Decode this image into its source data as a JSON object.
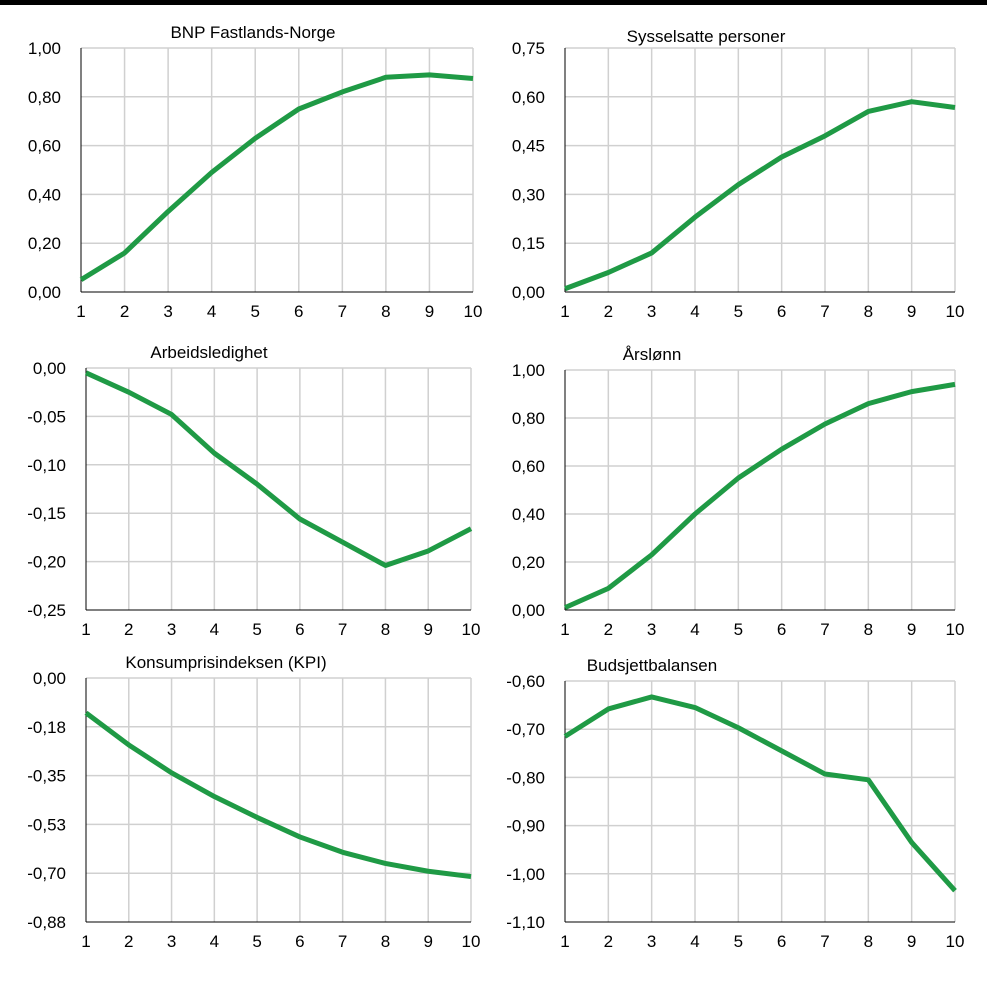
{
  "colors": {
    "series": "#1f9a45",
    "grid": "#d0d0d0",
    "axis": "#000000"
  },
  "chart_data": [
    {
      "type": "line",
      "title": "BNP Fastlands-Norge",
      "x": [
        1,
        2,
        3,
        4,
        5,
        6,
        7,
        8,
        9,
        10
      ],
      "values": [
        0.05,
        0.16,
        0.33,
        0.49,
        0.63,
        0.75,
        0.82,
        0.88,
        0.89,
        0.875
      ],
      "ylim": [
        0,
        1
      ],
      "yticks": [
        0,
        0.2,
        0.4,
        0.6,
        0.8,
        1.0
      ],
      "ytick_labels": [
        "0,00",
        "0,20",
        "0,40",
        "0,60",
        "0,80",
        "1,00"
      ],
      "xtick_labels": [
        "1",
        "2",
        "3",
        "4",
        "5",
        "6",
        "7",
        "8",
        "9",
        "10"
      ],
      "grid": true
    },
    {
      "type": "line",
      "title": "Sysselsatte personer",
      "x": [
        1,
        2,
        3,
        4,
        5,
        6,
        7,
        8,
        9,
        10
      ],
      "values": [
        0.01,
        0.06,
        0.12,
        0.23,
        0.33,
        0.415,
        0.48,
        0.555,
        0.585,
        0.567
      ],
      "ylim": [
        0,
        0.75
      ],
      "yticks": [
        0,
        0.15,
        0.3,
        0.45,
        0.6,
        0.75
      ],
      "ytick_labels": [
        "0,00",
        "0,15",
        "0,30",
        "0,45",
        "0,60",
        "0,75"
      ],
      "xtick_labels": [
        "1",
        "2",
        "3",
        "4",
        "5",
        "6",
        "7",
        "8",
        "9",
        "10"
      ],
      "grid": true
    },
    {
      "type": "line",
      "title": "Arbeidsledighet",
      "x": [
        1,
        2,
        3,
        4,
        5,
        6,
        7,
        8,
        9,
        10
      ],
      "values": [
        -0.005,
        -0.025,
        -0.048,
        -0.088,
        -0.12,
        -0.156,
        -0.18,
        -0.204,
        -0.189,
        -0.166
      ],
      "ylim": [
        -0.25,
        0
      ],
      "yticks": [
        -0.25,
        -0.2,
        -0.15,
        -0.1,
        -0.05,
        0
      ],
      "ytick_labels": [
        "-0,25",
        "-0,20",
        "-0,15",
        "-0,10",
        "-0,05",
        "0,00"
      ],
      "xtick_labels": [
        "1",
        "2",
        "3",
        "4",
        "5",
        "6",
        "7",
        "8",
        "9",
        "10"
      ],
      "grid": true
    },
    {
      "type": "line",
      "title": "Årslønn",
      "x": [
        1,
        2,
        3,
        4,
        5,
        6,
        7,
        8,
        9,
        10
      ],
      "values": [
        0.01,
        0.09,
        0.23,
        0.4,
        0.55,
        0.67,
        0.775,
        0.86,
        0.91,
        0.94
      ],
      "ylim": [
        0,
        1
      ],
      "yticks": [
        0,
        0.2,
        0.4,
        0.6,
        0.8,
        1.0
      ],
      "ytick_labels": [
        "0,00",
        "0,20",
        "0,40",
        "0,60",
        "0,80",
        "1,00"
      ],
      "xtick_labels": [
        "1",
        "2",
        "3",
        "4",
        "5",
        "6",
        "7",
        "8",
        "9",
        "10"
      ],
      "grid": true
    },
    {
      "type": "line",
      "title": "Konsumprisindeksen (KPI)",
      "x": [
        1,
        2,
        3,
        4,
        5,
        6,
        7,
        8,
        9,
        10
      ],
      "values": [
        -0.125,
        -0.24,
        -0.34,
        -0.425,
        -0.5,
        -0.57,
        -0.625,
        -0.665,
        -0.693,
        -0.712
      ],
      "ylim": [
        -0.875,
        0
      ],
      "yticks": [
        -0.875,
        -0.7,
        -0.525,
        -0.35,
        -0.175,
        0
      ],
      "ytick_labels": [
        "-0,88",
        "-0,70",
        "-0,53",
        "-0,35",
        "-0,18",
        "0,00"
      ],
      "xtick_labels": [
        "1",
        "2",
        "3",
        "4",
        "5",
        "6",
        "7",
        "8",
        "9",
        "10"
      ],
      "grid": true
    },
    {
      "type": "line",
      "title": "Budsjettbalansen",
      "x": [
        1,
        2,
        3,
        4,
        5,
        6,
        7,
        8,
        9,
        10
      ],
      "values": [
        -0.715,
        -0.658,
        -0.633,
        -0.655,
        -0.697,
        -0.745,
        -0.793,
        -0.805,
        -0.935,
        -1.035
      ],
      "ylim": [
        -1.1,
        -0.6
      ],
      "yticks": [
        -1.1,
        -1.0,
        -0.9,
        -0.8,
        -0.7,
        -0.6
      ],
      "ytick_labels": [
        "-1,10",
        "-1,00",
        "-0,90",
        "-0,80",
        "-0,70",
        "-0,60"
      ],
      "xtick_labels": [
        "1",
        "2",
        "3",
        "4",
        "5",
        "6",
        "7",
        "8",
        "9",
        "10"
      ],
      "grid": true
    }
  ]
}
